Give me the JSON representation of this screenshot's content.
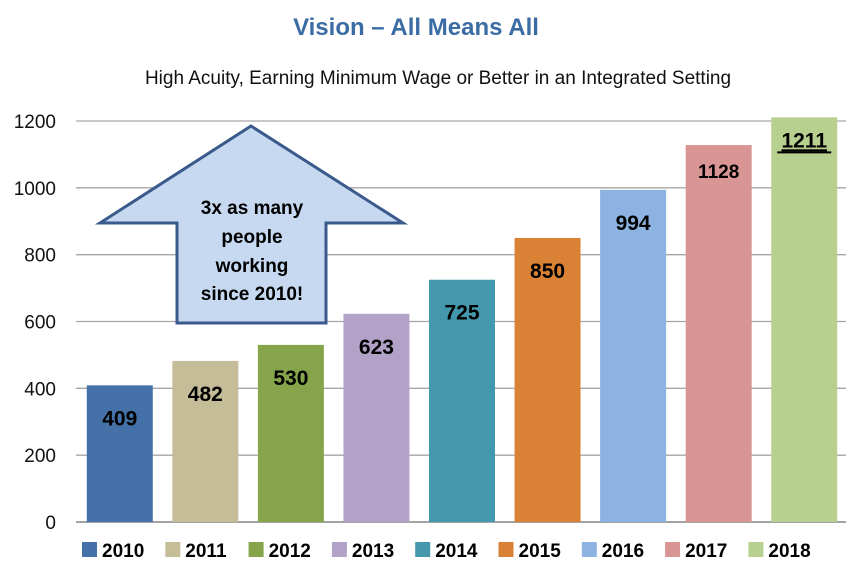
{
  "chart_data": {
    "type": "bar",
    "title": "Vision – All Means All",
    "subtitle": "High Acuity, Earning Minimum Wage or Better in an Integrated Setting",
    "categories": [
      "2010",
      "2011",
      "2012",
      "2013",
      "2014",
      "2015",
      "2016",
      "2017",
      "2018"
    ],
    "values": [
      409,
      482,
      530,
      623,
      725,
      850,
      994,
      1128,
      1211
    ],
    "colors": [
      "#4472a8",
      "#c4bd97",
      "#86a44a",
      "#b3a2c7",
      "#4398ad",
      "#d98236",
      "#8db3e2",
      "#d89594",
      "#b8d08f"
    ],
    "ylim": [
      0,
      1200
    ],
    "yticks": [
      0,
      200,
      400,
      600,
      800,
      1000,
      1200
    ],
    "grid": true,
    "legend": "bottom",
    "emphasized_label": "1211",
    "annotation": {
      "lines": [
        "3x as many",
        "people",
        "working",
        "since 2010!"
      ],
      "shape": "up-arrow",
      "fill": "#c6d9f0",
      "stroke": "#3a5a8c"
    }
  }
}
